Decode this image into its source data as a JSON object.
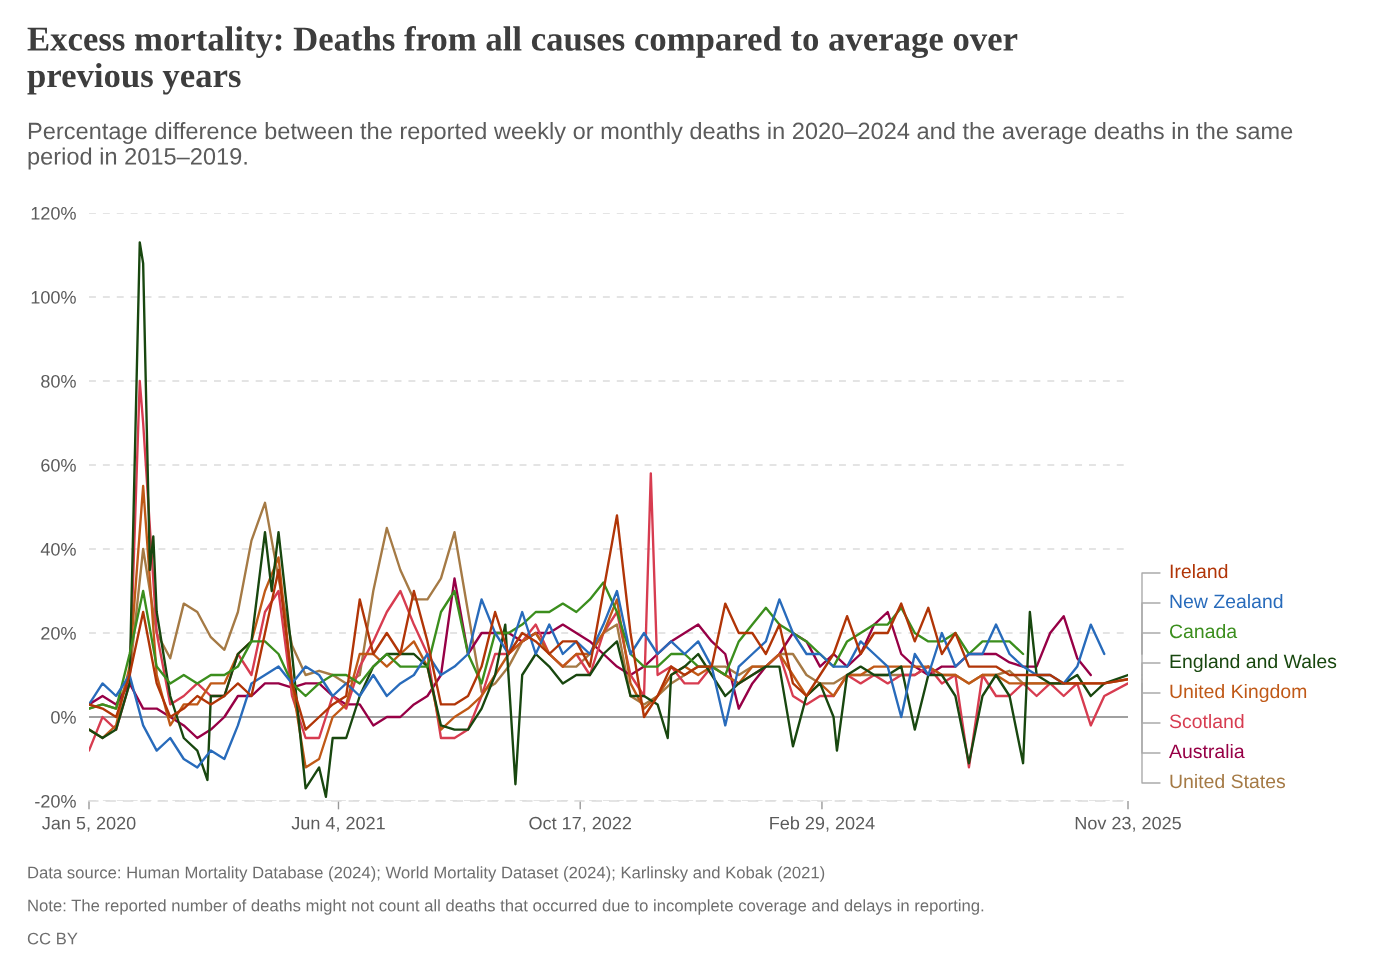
{
  "chart_data": {
    "type": "line",
    "title": "Excess mortality: Deaths from all causes compared to average over previous years",
    "subtitle": "Percentage difference between the reported weekly or monthly deaths in 2020–2024 and the average deaths in the same period in 2015–2019.",
    "x": [
      "2020-01-05",
      "2020-02-02",
      "2020-03-01",
      "2020-03-29",
      "2020-04-26",
      "2020-05-24",
      "2020-06-21",
      "2020-07-19",
      "2020-08-16",
      "2020-09-13",
      "2020-10-11",
      "2020-11-08",
      "2020-12-06",
      "2021-01-03",
      "2021-01-31",
      "2021-02-28",
      "2021-03-28",
      "2021-04-25",
      "2021-05-23",
      "2021-06-20",
      "2021-07-18",
      "2021-08-15",
      "2021-09-12",
      "2021-10-10",
      "2021-11-07",
      "2021-12-05",
      "2022-01-02",
      "2022-01-30",
      "2022-02-27",
      "2022-03-27",
      "2022-04-24",
      "2022-05-22",
      "2022-06-19",
      "2022-07-17",
      "2022-08-14",
      "2022-09-11",
      "2022-10-09",
      "2022-11-06",
      "2022-12-04",
      "2023-01-01",
      "2023-01-29",
      "2023-02-26",
      "2023-03-26",
      "2023-04-23",
      "2023-05-21",
      "2023-06-18",
      "2023-07-16",
      "2023-08-13",
      "2023-09-10",
      "2023-10-08",
      "2023-11-05",
      "2023-12-03",
      "2023-12-31",
      "2024-01-28",
      "2024-02-25",
      "2024-03-24",
      "2024-04-21",
      "2024-05-19",
      "2024-06-16",
      "2024-07-14",
      "2024-08-11",
      "2024-09-08",
      "2024-10-06",
      "2024-11-03",
      "2024-12-01",
      "2024-12-29",
      "2025-01-26",
      "2025-02-23",
      "2025-03-23",
      "2025-04-20",
      "2025-05-18",
      "2025-06-15",
      "2025-07-13",
      "2025-08-10",
      "2025-09-07",
      "2025-10-05",
      "2025-11-23"
    ],
    "xlim": [
      "2020-01-05",
      "2025-11-23"
    ],
    "xticks": [
      {
        "value": "2020-01-05",
        "label": "Jan 5, 2020"
      },
      {
        "value": "2021-06-04",
        "label": "Jun 4, 2021"
      },
      {
        "value": "2022-10-17",
        "label": "Oct 17, 2022"
      },
      {
        "value": "2024-02-29",
        "label": "Feb 29, 2024"
      },
      {
        "value": "2025-11-23",
        "label": "Nov 23, 2025"
      }
    ],
    "ylim": [
      -20,
      120
    ],
    "yticks": [
      {
        "value": -20,
        "label": "-20%"
      },
      {
        "value": 0,
        "label": "0%"
      },
      {
        "value": 20,
        "label": "20%"
      },
      {
        "value": 40,
        "label": "40%"
      },
      {
        "value": 60,
        "label": "60%"
      },
      {
        "value": 80,
        "label": "80%"
      },
      {
        "value": 100,
        "label": "100%"
      },
      {
        "value": 120,
        "label": "120%"
      }
    ],
    "grid": "y",
    "legend": "right",
    "line_style": "solid",
    "ref_lines": [
      {
        "axis": "y",
        "value": 0,
        "color": "#a0a0a0"
      }
    ],
    "annotations": [
      "Data source: Human Mortality Database (2024); World Mortality Dataset (2024); Karlinsky and Kobak (2021)",
      "Note: The reported number of deaths might not count all deaths that occurred due to incomplete coverage and delays in reporting.",
      "CC BY"
    ],
    "series": [
      {
        "name": "Ireland",
        "color": "#b13507",
        "values": [
          3,
          2,
          0,
          10,
          25,
          8,
          0,
          2,
          5,
          3,
          5,
          8,
          5,
          20,
          35,
          8,
          -3,
          0,
          3,
          5,
          28,
          15,
          20,
          15,
          30,
          18,
          3,
          3,
          5,
          12,
          25,
          15,
          20,
          18,
          15,
          18,
          18,
          12,
          30,
          48,
          20,
          0,
          5,
          12,
          10,
          12,
          12,
          27,
          20,
          20,
          15,
          22,
          8,
          5,
          10,
          15,
          24,
          15,
          20,
          20,
          27,
          18,
          26,
          15,
          20,
          12,
          12,
          12,
          10,
          10,
          10,
          10,
          8,
          8,
          8,
          8,
          9
        ]
      },
      {
        "name": "New Zealand",
        "color": "#286bbb",
        "values": [
          3,
          8,
          5,
          10,
          -2,
          -8,
          -5,
          -10,
          -12,
          -8,
          -10,
          -2,
          8,
          10,
          12,
          8,
          12,
          10,
          5,
          8,
          5,
          10,
          5,
          8,
          10,
          15,
          10,
          12,
          15,
          28,
          20,
          15,
          25,
          15,
          22,
          15,
          18,
          15,
          22,
          30,
          15,
          20,
          15,
          18,
          15,
          18,
          12,
          -2,
          12,
          15,
          18,
          28,
          20,
          15,
          15,
          12,
          12,
          18,
          15,
          12,
          0,
          15,
          10,
          20,
          12,
          15,
          15,
          22,
          15,
          12,
          10,
          10,
          8,
          12,
          22,
          15,
          null
        ]
      },
      {
        "name": "Canada",
        "color": "#3b8e1d",
        "values": [
          2,
          3,
          2,
          15,
          30,
          12,
          8,
          10,
          8,
          10,
          10,
          12,
          18,
          18,
          15,
          8,
          5,
          8,
          10,
          10,
          8,
          12,
          15,
          12,
          12,
          12,
          25,
          30,
          15,
          8,
          20,
          20,
          22,
          25,
          25,
          27,
          25,
          28,
          32,
          25,
          15,
          12,
          12,
          15,
          15,
          12,
          12,
          10,
          18,
          22,
          26,
          22,
          20,
          18,
          15,
          12,
          18,
          20,
          22,
          22,
          26,
          20,
          18,
          18,
          20,
          15,
          18,
          18,
          18,
          15,
          null,
          null,
          null,
          null,
          null,
          null,
          null
        ]
      },
      {
        "name": "England and Wales",
        "color": "#18470f",
        "x": [
          "2020-01-05",
          "2020-02-02",
          "2020-03-01",
          "2020-03-29",
          "2020-04-19",
          "2020-04-26",
          "2020-05-10",
          "2020-05-17",
          "2020-05-24",
          "2020-06-21",
          "2020-07-19",
          "2020-08-16",
          "2020-09-06",
          "2020-09-13",
          "2020-10-11",
          "2020-11-08",
          "2020-12-06",
          "2021-01-03",
          "2021-01-17",
          "2021-01-31",
          "2021-02-28",
          "2021-03-28",
          "2021-04-25",
          "2021-05-09",
          "2021-05-23",
          "2021-06-20",
          "2021-07-18",
          "2021-08-15",
          "2021-09-12",
          "2021-10-10",
          "2021-11-07",
          "2021-12-05",
          "2022-01-02",
          "2022-01-30",
          "2022-02-27",
          "2022-03-27",
          "2022-04-24",
          "2022-05-15",
          "2022-06-05",
          "2022-06-19",
          "2022-07-17",
          "2022-08-14",
          "2022-09-11",
          "2022-10-09",
          "2022-11-06",
          "2022-12-04",
          "2023-01-01",
          "2023-01-29",
          "2023-02-26",
          "2023-03-26",
          "2023-04-16",
          "2023-04-23",
          "2023-05-21",
          "2023-06-18",
          "2023-07-16",
          "2023-08-13",
          "2023-09-10",
          "2023-10-08",
          "2023-11-05",
          "2023-12-03",
          "2023-12-31",
          "2024-01-28",
          "2024-02-25",
          "2024-03-24",
          "2024-03-31",
          "2024-04-21",
          "2024-05-19",
          "2024-06-16",
          "2024-07-14",
          "2024-08-11",
          "2024-09-08",
          "2024-10-06",
          "2024-11-03",
          "2024-12-01",
          "2024-12-29",
          "2025-01-26",
          "2025-02-23",
          "2025-03-23",
          "2025-04-20",
          "2025-05-04",
          "2025-05-18",
          "2025-06-15",
          "2025-07-13",
          "2025-08-10",
          "2025-09-07",
          "2025-10-05",
          "2025-11-23"
        ],
        "values": [
          -3,
          -5,
          -3,
          8,
          113,
          108,
          35,
          43,
          25,
          5,
          -5,
          -8,
          -15,
          5,
          5,
          15,
          18,
          44,
          30,
          44,
          15,
          -17,
          -12,
          -19,
          -5,
          -5,
          5,
          12,
          15,
          15,
          15,
          12,
          -2,
          -3,
          -3,
          2,
          10,
          22,
          -16,
          10,
          15,
          12,
          8,
          10,
          10,
          15,
          18,
          5,
          5,
          3,
          -5,
          10,
          12,
          15,
          10,
          5,
          8,
          10,
          12,
          12,
          -7,
          5,
          8,
          0,
          -8,
          10,
          12,
          10,
          10,
          12,
          -3,
          10,
          10,
          5,
          -11,
          5,
          10,
          5,
          -11,
          25,
          10,
          8,
          8,
          10,
          5,
          8,
          10
        ]
      },
      {
        "name": "United Kingdom",
        "color": "#c05917",
        "values": [
          -3,
          -5,
          -2,
          12,
          55,
          10,
          -2,
          3,
          3,
          8,
          8,
          15,
          18,
          30,
          38,
          8,
          -12,
          -10,
          0,
          3,
          15,
          15,
          12,
          15,
          18,
          12,
          -3,
          0,
          2,
          5,
          10,
          15,
          18,
          20,
          15,
          12,
          15,
          15,
          20,
          28,
          8,
          2,
          5,
          10,
          12,
          10,
          12,
          10,
          8,
          12,
          12,
          15,
          10,
          5,
          8,
          5,
          10,
          10,
          12,
          12,
          12,
          12,
          12,
          10,
          10,
          8,
          10,
          10,
          8,
          8,
          8,
          8,
          8,
          8,
          8,
          8,
          9
        ]
      },
      {
        "name": "Scotland",
        "color": "#d73c50",
        "x": [
          "2020-01-05",
          "2020-02-02",
          "2020-03-01",
          "2020-03-29",
          "2020-04-19",
          "2020-04-26",
          "2020-05-24",
          "2020-06-21",
          "2020-07-19",
          "2020-08-16",
          "2020-09-13",
          "2020-10-11",
          "2020-11-08",
          "2020-12-06",
          "2021-01-03",
          "2021-01-31",
          "2021-02-28",
          "2021-03-28",
          "2021-04-25",
          "2021-05-23",
          "2021-06-20",
          "2021-07-18",
          "2021-08-15",
          "2021-09-12",
          "2021-10-10",
          "2021-11-07",
          "2021-12-05",
          "2022-01-02",
          "2022-01-30",
          "2022-02-27",
          "2022-03-27",
          "2022-04-24",
          "2022-05-22",
          "2022-06-19",
          "2022-07-17",
          "2022-08-14",
          "2022-09-11",
          "2022-10-09",
          "2022-11-06",
          "2022-12-04",
          "2023-01-01",
          "2023-01-29",
          "2023-02-26",
          "2023-03-12",
          "2023-03-26",
          "2023-04-23",
          "2023-05-21",
          "2023-06-18",
          "2023-07-16",
          "2023-08-13",
          "2023-09-10",
          "2023-10-08",
          "2023-11-05",
          "2023-12-03",
          "2023-12-31",
          "2024-01-28",
          "2024-02-25",
          "2024-03-24",
          "2024-04-21",
          "2024-05-19",
          "2024-06-16",
          "2024-07-14",
          "2024-08-11",
          "2024-09-08",
          "2024-10-06",
          "2024-11-03",
          "2024-12-01",
          "2024-12-29",
          "2025-01-26",
          "2025-02-23",
          "2025-03-23",
          "2025-04-20",
          "2025-05-18",
          "2025-06-15",
          "2025-07-13",
          "2025-08-10",
          "2025-09-07",
          "2025-10-05",
          "2025-11-23"
        ],
        "values": [
          -8,
          0,
          -3,
          8,
          80,
          70,
          20,
          3,
          5,
          8,
          5,
          5,
          15,
          10,
          25,
          30,
          5,
          -5,
          -5,
          5,
          2,
          12,
          18,
          25,
          30,
          22,
          15,
          -5,
          -5,
          -3,
          5,
          15,
          15,
          18,
          22,
          15,
          12,
          15,
          10,
          20,
          25,
          10,
          5,
          58,
          10,
          12,
          8,
          8,
          12,
          10,
          8,
          10,
          12,
          15,
          5,
          3,
          5,
          5,
          10,
          8,
          10,
          8,
          10,
          10,
          12,
          8,
          10,
          -12,
          10,
          5,
          5,
          8,
          5,
          8,
          5,
          8,
          -2,
          5,
          8
        ]
      },
      {
        "name": "Australia",
        "color": "#970046",
        "values": [
          3,
          5,
          3,
          8,
          2,
          2,
          0,
          -2,
          -5,
          -3,
          0,
          5,
          5,
          8,
          8,
          7,
          8,
          8,
          5,
          3,
          3,
          -2,
          0,
          0,
          3,
          5,
          10,
          33,
          15,
          20,
          20,
          20,
          18,
          20,
          20,
          22,
          20,
          18,
          15,
          12,
          10,
          12,
          15,
          18,
          20,
          22,
          18,
          15,
          2,
          8,
          12,
          15,
          20,
          18,
          12,
          15,
          12,
          15,
          22,
          25,
          15,
          12,
          10,
          12,
          12,
          15,
          15,
          15,
          13,
          12,
          12,
          20,
          24,
          14,
          10,
          null,
          null
        ]
      },
      {
        "name": "United States",
        "color": "#a57a45",
        "values": [
          2,
          3,
          2,
          10,
          40,
          20,
          14,
          27,
          25,
          19,
          16,
          25,
          42,
          51,
          33,
          17,
          10,
          11,
          10,
          8,
          10,
          30,
          45,
          35,
          28,
          28,
          33,
          44,
          25,
          6,
          8,
          12,
          18,
          20,
          15,
          12,
          12,
          15,
          20,
          22,
          5,
          3,
          5,
          8,
          10,
          12,
          12,
          12,
          10,
          12,
          12,
          15,
          15,
          10,
          8,
          8,
          10,
          10,
          10,
          10,
          10,
          10,
          12,
          10,
          10,
          8,
          10,
          10,
          11,
          8,
          8,
          8,
          8,
          8,
          null,
          null,
          null
        ]
      }
    ]
  }
}
